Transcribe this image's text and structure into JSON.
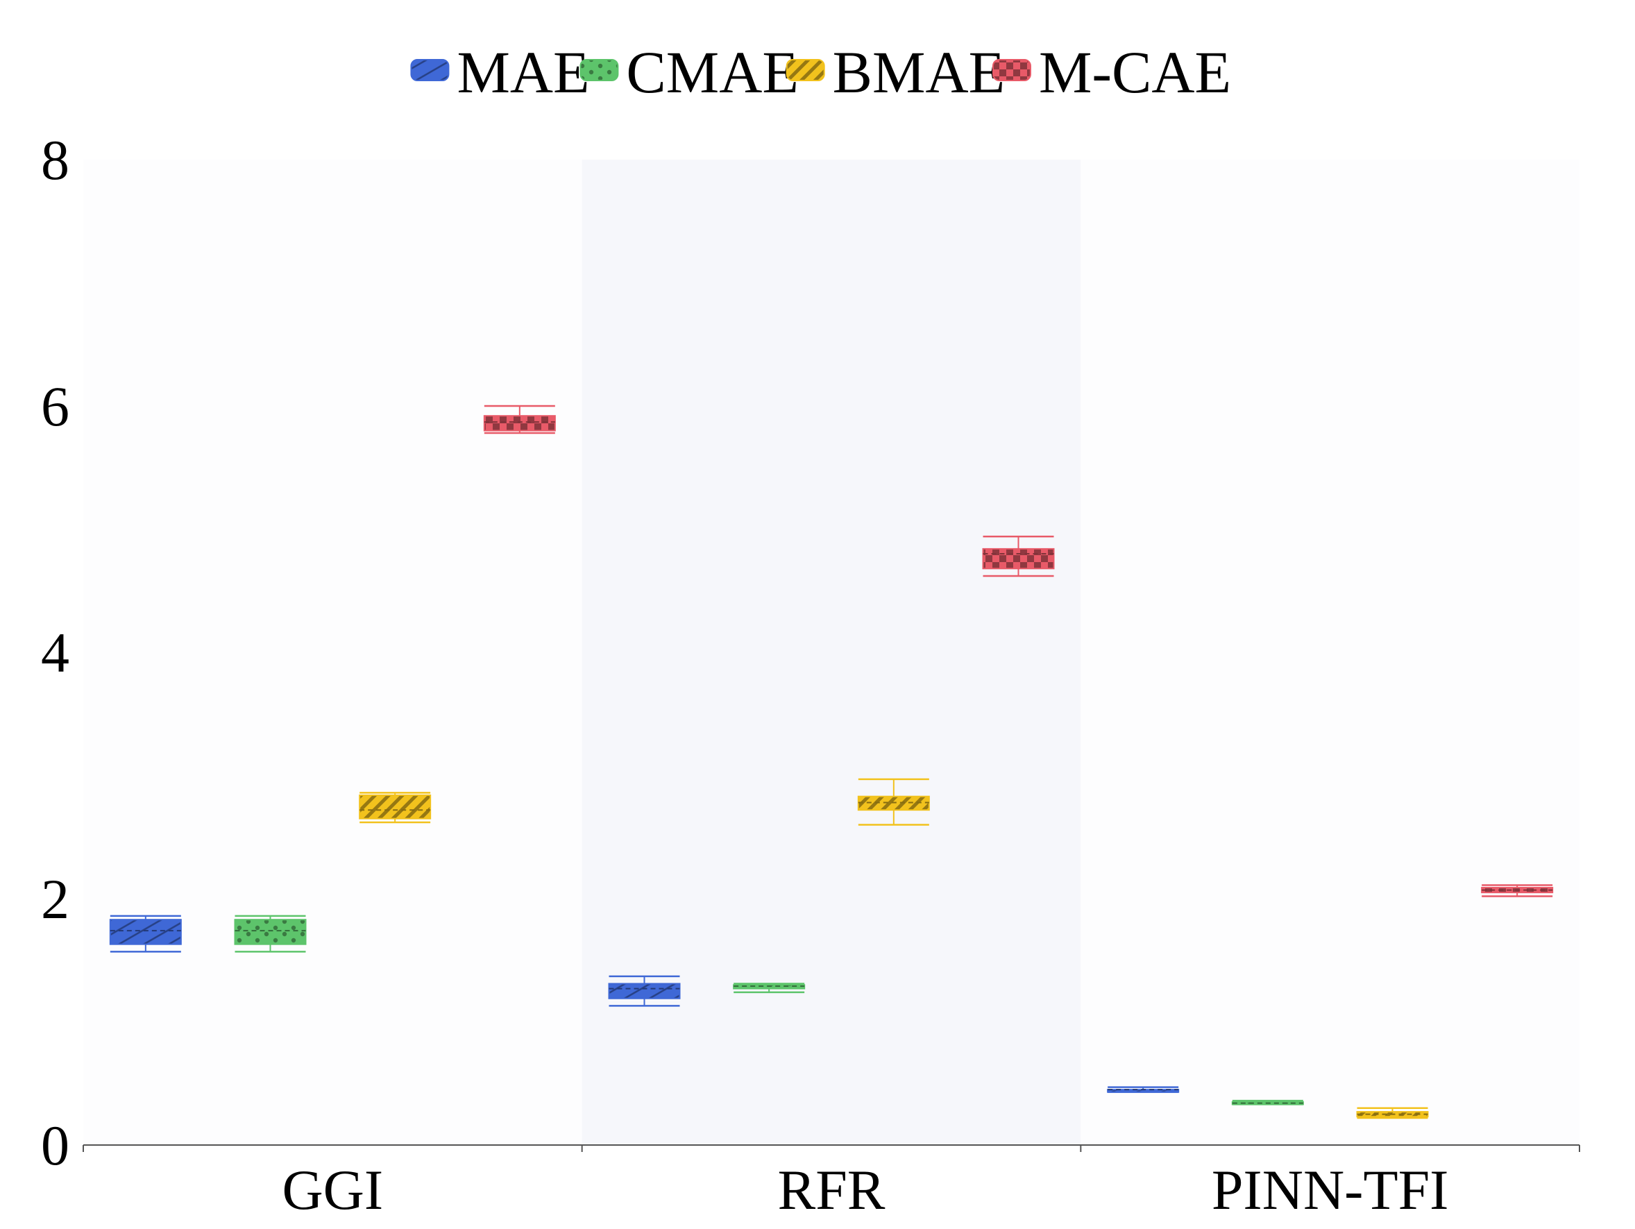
{
  "chart_data": {
    "type": "box",
    "title": "",
    "xlabel": "",
    "ylabel": "",
    "categories": [
      "GGI",
      "RFR",
      "PINN-TFI"
    ],
    "ylim": [
      0,
      8
    ],
    "yticks": [
      0,
      2,
      4,
      6,
      8
    ],
    "legend_position": "top-center",
    "series": [
      {
        "name": "MAE",
        "color": "#3f68d6",
        "pattern": "diagonal-lines",
        "boxes": [
          {
            "min": 1.57,
            "q1": 1.63,
            "median": 1.74,
            "q3": 1.83,
            "max": 1.86
          },
          {
            "min": 1.13,
            "q1": 1.19,
            "median": 1.27,
            "q3": 1.31,
            "max": 1.37
          },
          {
            "min": 0.43,
            "q1": 0.43,
            "median": 0.45,
            "q3": 0.45,
            "max": 0.47
          }
        ]
      },
      {
        "name": "CMAE",
        "color": "#5dc46b",
        "pattern": "dots",
        "boxes": [
          {
            "min": 1.57,
            "q1": 1.63,
            "median": 1.74,
            "q3": 1.83,
            "max": 1.86
          },
          {
            "min": 1.24,
            "q1": 1.27,
            "median": 1.29,
            "q3": 1.3,
            "max": 1.31
          },
          {
            "min": 0.33,
            "q1": 0.33,
            "median": 0.34,
            "q3": 0.35,
            "max": 0.36
          }
        ]
      },
      {
        "name": "BMAE",
        "color": "#f2c21d",
        "pattern": "diagonal-hatch",
        "boxes": [
          {
            "min": 2.62,
            "q1": 2.65,
            "median": 2.72,
            "q3": 2.84,
            "max": 2.86
          },
          {
            "min": 2.6,
            "q1": 2.72,
            "median": 2.78,
            "q3": 2.83,
            "max": 2.97
          },
          {
            "min": 0.22,
            "q1": 0.23,
            "median": 0.25,
            "q3": 0.27,
            "max": 0.3
          }
        ]
      },
      {
        "name": "M-CAE",
        "color": "#e85a68",
        "pattern": "checker",
        "boxes": [
          {
            "min": 5.78,
            "q1": 5.8,
            "median": 5.87,
            "q3": 5.92,
            "max": 6.0
          },
          {
            "min": 4.62,
            "q1": 4.68,
            "median": 4.8,
            "q3": 4.84,
            "max": 4.94
          },
          {
            "min": 2.02,
            "q1": 2.05,
            "median": 2.07,
            "q3": 2.09,
            "max": 2.11
          }
        ]
      }
    ]
  }
}
